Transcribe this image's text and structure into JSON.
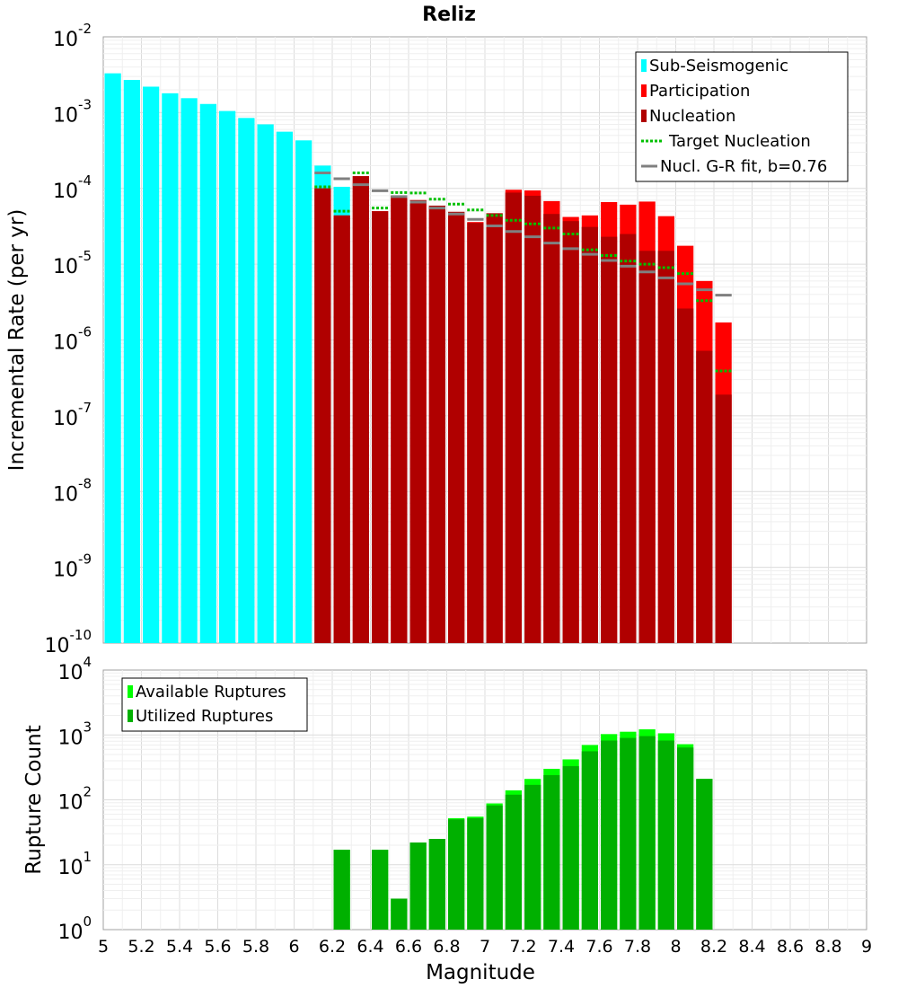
{
  "chart_data": [
    {
      "type": "bar",
      "title": "Reliz",
      "xlabel": "",
      "ylabel": "Incremental Rate (per yr)",
      "yscale": "log",
      "xlim": [
        5,
        9
      ],
      "ylim": [
        1e-10,
        0.01
      ],
      "legend_position": "top-right",
      "grid": true,
      "series": [
        {
          "name": "Sub-Seismogenic",
          "color": "#00ffff",
          "x": [
            5.05,
            5.15,
            5.25,
            5.35,
            5.45,
            5.55,
            5.65,
            5.75,
            5.85,
            5.95,
            6.05,
            6.15,
            6.25
          ],
          "values": [
            0.0033,
            0.0027,
            0.0022,
            0.0018,
            0.00155,
            0.0013,
            0.00105,
            0.00085,
            0.0007,
            0.00056,
            0.00043,
            0.0002,
            0.000105
          ]
        },
        {
          "name": "Participation",
          "color": "#ff0000",
          "x": [
            6.15,
            6.25,
            6.35,
            6.45,
            6.55,
            6.65,
            6.75,
            6.85,
            6.95,
            7.05,
            7.15,
            7.25,
            7.35,
            7.45,
            7.55,
            7.65,
            7.75,
            7.85,
            7.95,
            8.05,
            8.15,
            8.25
          ],
          "values": [
            0.0001,
            4.4e-05,
            0.000145,
            5e-05,
            8e-05,
            7e-05,
            5.9e-05,
            4.9e-05,
            3.6e-05,
            4.7e-05,
            9.6e-05,
            9.4e-05,
            6.8e-05,
            4.2e-05,
            4.4e-05,
            6.6e-05,
            6.1e-05,
            6.7e-05,
            4.3e-05,
            1.75e-05,
            6e-06,
            1.7e-06
          ]
        },
        {
          "name": "Nucleation",
          "color": "#b00000",
          "x": [
            6.15,
            6.25,
            6.35,
            6.45,
            6.55,
            6.65,
            6.75,
            6.85,
            6.95,
            7.05,
            7.15,
            7.25,
            7.35,
            7.45,
            7.55,
            7.65,
            7.75,
            7.85,
            7.95,
            8.05,
            8.15,
            8.25
          ],
          "values": [
            0.0001,
            4.4e-05,
            0.000145,
            5e-05,
            8e-05,
            7e-05,
            5.9e-05,
            4.9e-05,
            3.5e-05,
            4.7e-05,
            8.8e-05,
            8e-05,
            4.6e-05,
            3.7e-05,
            3.1e-05,
            2.3e-05,
            2.5e-05,
            1.5e-05,
            1.5e-05,
            2.6e-06,
            7.2e-07,
            1.9e-07
          ]
        },
        {
          "name": "Target Nucleation",
          "type": "step-dotted",
          "color": "#00c000",
          "x": [
            6.15,
            6.25,
            6.35,
            6.45,
            6.55,
            6.65,
            6.75,
            6.85,
            6.95,
            7.05,
            7.15,
            7.25,
            7.35,
            7.45,
            7.55,
            7.65,
            7.75,
            7.85,
            7.95,
            8.05,
            8.15,
            8.25
          ],
          "values": [
            0.000105,
            5e-05,
            0.00016,
            5.5e-05,
            8.8e-05,
            8.7e-05,
            7.2e-05,
            6.2e-05,
            5.2e-05,
            4.4e-05,
            3.8e-05,
            3.4e-05,
            3e-05,
            2.5e-05,
            1.55e-05,
            1.3e-05,
            1.1e-05,
            1e-05,
            9e-06,
            7.5e-06,
            3.3e-06,
            3.9e-07
          ]
        },
        {
          "name": "Nucl. G-R fit, b=0.76",
          "type": "step",
          "color": "#808080",
          "x": [
            6.15,
            6.25,
            6.35,
            6.45,
            6.55,
            6.65,
            6.75,
            6.85,
            6.95,
            7.05,
            7.15,
            7.25,
            7.35,
            7.45,
            7.55,
            7.65,
            7.75,
            7.85,
            7.95,
            8.05,
            8.15,
            8.25
          ],
          "values": [
            0.00016,
            0.000134,
            0.000112,
            9.3e-05,
            7.8e-05,
            6.6e-05,
            5.5e-05,
            4.6e-05,
            3.9e-05,
            3.2e-05,
            2.7e-05,
            2.3e-05,
            1.9e-05,
            1.6e-05,
            1.35e-05,
            1.12e-05,
            9.4e-06,
            7.9e-06,
            6.6e-06,
            5.5e-06,
            4.6e-06,
            3.9e-06
          ]
        }
      ]
    },
    {
      "type": "bar",
      "title": "",
      "xlabel": "Magnitude",
      "ylabel": "Rupture Count",
      "yscale": "log",
      "xlim": [
        5,
        9
      ],
      "ylim": [
        1,
        10000
      ],
      "legend_position": "top-left",
      "grid": true,
      "xticks": [
        "5",
        "5.2",
        "5.4",
        "5.6",
        "5.8",
        "6",
        "6.2",
        "6.4",
        "6.6",
        "6.8",
        "7",
        "7.2",
        "7.4",
        "7.6",
        "7.8",
        "8",
        "8.2",
        "8.4",
        "8.6",
        "8.8",
        "9"
      ],
      "series": [
        {
          "name": "Available Ruptures",
          "color": "#00ff00",
          "x": [
            6.25,
            6.45,
            6.55,
            6.65,
            6.75,
            6.85,
            6.95,
            7.05,
            7.15,
            7.25,
            7.35,
            7.45,
            7.55,
            7.65,
            7.75,
            7.85,
            7.95,
            8.05,
            8.15
          ],
          "values": [
            17,
            17,
            3,
            22,
            25,
            52,
            55,
            88,
            140,
            210,
            300,
            420,
            700,
            1030,
            1120,
            1220,
            1060,
            720,
            210
          ]
        },
        {
          "name": "Utilized Ruptures",
          "color": "#00b000",
          "x": [
            6.25,
            6.45,
            6.55,
            6.65,
            6.75,
            6.85,
            6.95,
            7.05,
            7.15,
            7.25,
            7.35,
            7.45,
            7.55,
            7.65,
            7.75,
            7.85,
            7.95,
            8.05,
            8.15
          ],
          "values": [
            17,
            17,
            3,
            22,
            25,
            50,
            52,
            82,
            120,
            170,
            240,
            330,
            560,
            820,
            900,
            960,
            820,
            640,
            210
          ]
        }
      ]
    }
  ]
}
